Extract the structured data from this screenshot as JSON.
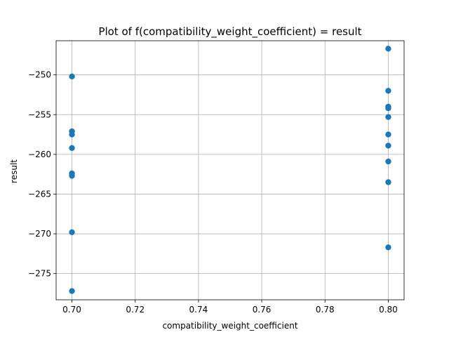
{
  "chart_data": {
    "type": "scatter",
    "title": "Plot of f(compatibility_weight_coefficient) = result",
    "xlabel": "compatibility_weight_coefficient",
    "ylabel": "result",
    "xlim": [
      0.695,
      0.805
    ],
    "ylim": [
      -278.3,
      -245.7
    ],
    "xticks": [
      0.7,
      0.72,
      0.74,
      0.76,
      0.78,
      0.8
    ],
    "xtick_labels": [
      "0.70",
      "0.72",
      "0.74",
      "0.76",
      "0.78",
      "0.80"
    ],
    "yticks": [
      -275,
      -270,
      -265,
      -260,
      -255,
      -250
    ],
    "ytick_labels": [
      "−275",
      "−270",
      "−265",
      "−260",
      "−255",
      "−250"
    ],
    "grid": true,
    "marker_color": "#1f77b4",
    "series": [
      {
        "points": [
          {
            "x": 0.7,
            "y": -250.2
          },
          {
            "x": 0.7,
            "y": -257.1
          },
          {
            "x": 0.7,
            "y": -257.5
          },
          {
            "x": 0.7,
            "y": -259.2
          },
          {
            "x": 0.7,
            "y": -262.4
          },
          {
            "x": 0.7,
            "y": -262.7
          },
          {
            "x": 0.7,
            "y": -269.8
          },
          {
            "x": 0.7,
            "y": -277.2
          },
          {
            "x": 0.8,
            "y": -246.7
          },
          {
            "x": 0.8,
            "y": -252.0
          },
          {
            "x": 0.8,
            "y": -254.0
          },
          {
            "x": 0.8,
            "y": -254.2
          },
          {
            "x": 0.8,
            "y": -255.3
          },
          {
            "x": 0.8,
            "y": -257.5
          },
          {
            "x": 0.8,
            "y": -258.9
          },
          {
            "x": 0.8,
            "y": -260.9
          },
          {
            "x": 0.8,
            "y": -263.5
          },
          {
            "x": 0.8,
            "y": -271.7
          }
        ]
      }
    ]
  }
}
